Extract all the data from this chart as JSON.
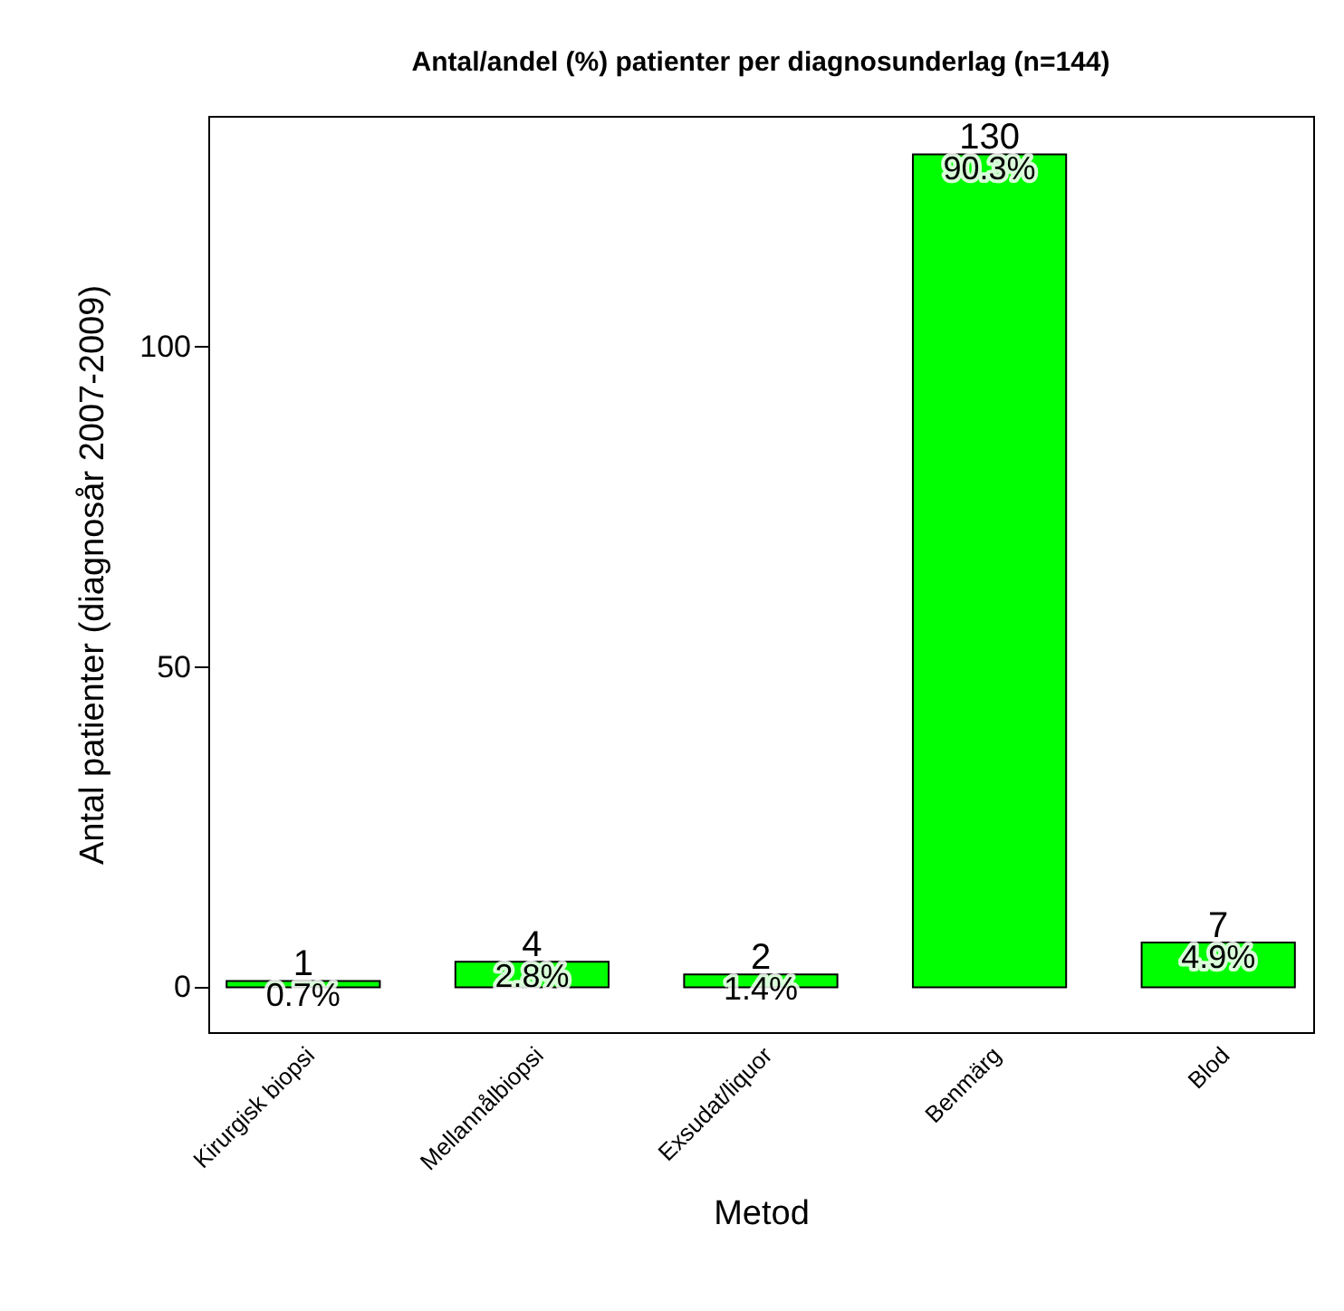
{
  "chart_data": {
    "type": "bar",
    "title": "Antal/andel (%) patienter per diagnosunderlag (n=144)",
    "xlabel": "Metod",
    "ylabel": "Antal patienter (diagnosår 2007-2009)",
    "categories": [
      "Kirurgisk biopsi",
      "Mellannålbiopsi",
      "Exsudat/liquor",
      "Benmärg",
      "Blod"
    ],
    "values": [
      1,
      4,
      2,
      130,
      7
    ],
    "color": "#00ff00",
    "data_labels": true,
    "annotations": [
      {
        "text": "0.7%",
        "x": "Kirurgisk biopsi",
        "y": 1
      },
      {
        "text": "2.8%",
        "x": "Mellannålbiopsi",
        "y": 4
      },
      {
        "text": "1.4%",
        "x": "Exsudat/liquor",
        "y": 2
      },
      {
        "text": "90.3%",
        "x": "Benmärg",
        "y": 130
      },
      {
        "text": "4.9%",
        "x": "Blod",
        "y": 7
      }
    ],
    "ylim": [
      -7,
      136
    ],
    "yticks": [
      0,
      50,
      100
    ],
    "grid": false
  }
}
